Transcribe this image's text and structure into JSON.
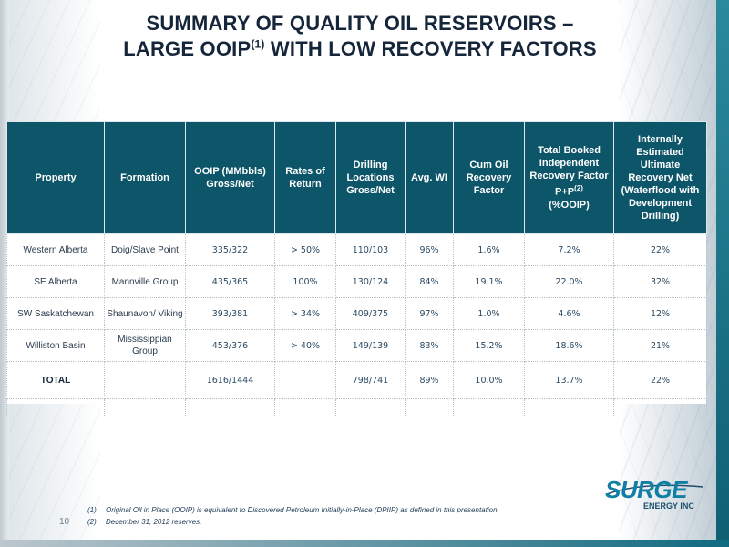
{
  "title": {
    "line1": "SUMMARY OF QUALITY OIL RESERVOIRS –",
    "line2_pre": "LARGE OOIP",
    "line2_sup": "(1)",
    "line2_post": " WITH LOW RECOVERY FACTORS"
  },
  "table": {
    "headers": [
      "Property",
      "Formation",
      "OOIP (MMbbls) Gross/Net",
      "Rates of Return",
      "Drilling Locations Gross/Net",
      "Avg. WI",
      "Cum Oil Recovery Factor",
      "Total Booked Independent Recovery Factor P+P",
      "Internally Estimated Ultimate Recovery Net (Waterflood with Development Drilling)"
    ],
    "header_sup": "(2)",
    "header_suffix": "(%OOIP)",
    "rows": [
      {
        "property": "Western Alberta",
        "formation": "Doig/Slave Point",
        "ooip": "335/322",
        "ror": "> 50%",
        "locations": "110/103",
        "wi": "96%",
        "cum": "1.6%",
        "booked": "7.2%",
        "eur": "22%"
      },
      {
        "property": "SE Alberta",
        "formation": "Mannville Group",
        "ooip": "435/365",
        "ror": "100%",
        "locations": "130/124",
        "wi": "84%",
        "cum": "19.1%",
        "booked": "22.0%",
        "eur": "32%"
      },
      {
        "property": "SW Saskatchewan",
        "formation": "Shaunavon/ Viking",
        "ooip": "393/381",
        "ror": "> 34%",
        "locations": "409/375",
        "wi": "97%",
        "cum": "1.0%",
        "booked": "4.6%",
        "eur": "12%"
      },
      {
        "property": "Williston Basin",
        "formation": "Mississippian Group",
        "ooip": "453/376",
        "ror": "> 40%",
        "locations": "149/139",
        "wi": "83%",
        "cum": "15.2%",
        "booked": "18.6%",
        "eur": "21%"
      }
    ],
    "total": {
      "property": "TOTAL",
      "formation": "",
      "ooip": "1616/1444",
      "ror": "",
      "locations": "798/741",
      "wi": "89%",
      "cum": "10.0%",
      "booked": "13.7%",
      "eur": "22%"
    }
  },
  "footnotes": [
    {
      "num": "(1)",
      "text": "Original Oil in Place (OOIP) is equivalent to Discovered Petroleum Initially-in-Place (DPIIP) as defined in this presentation."
    },
    {
      "num": "(2)",
      "text": "December 31, 2012 reserves."
    }
  ],
  "page_number": "10",
  "logo": {
    "word": "SURGE",
    "sub": "ENERGY INC"
  },
  "colors": {
    "header_bg": "#0d5569",
    "title": "#15263a",
    "accent_teal": "#0f7fa6"
  }
}
